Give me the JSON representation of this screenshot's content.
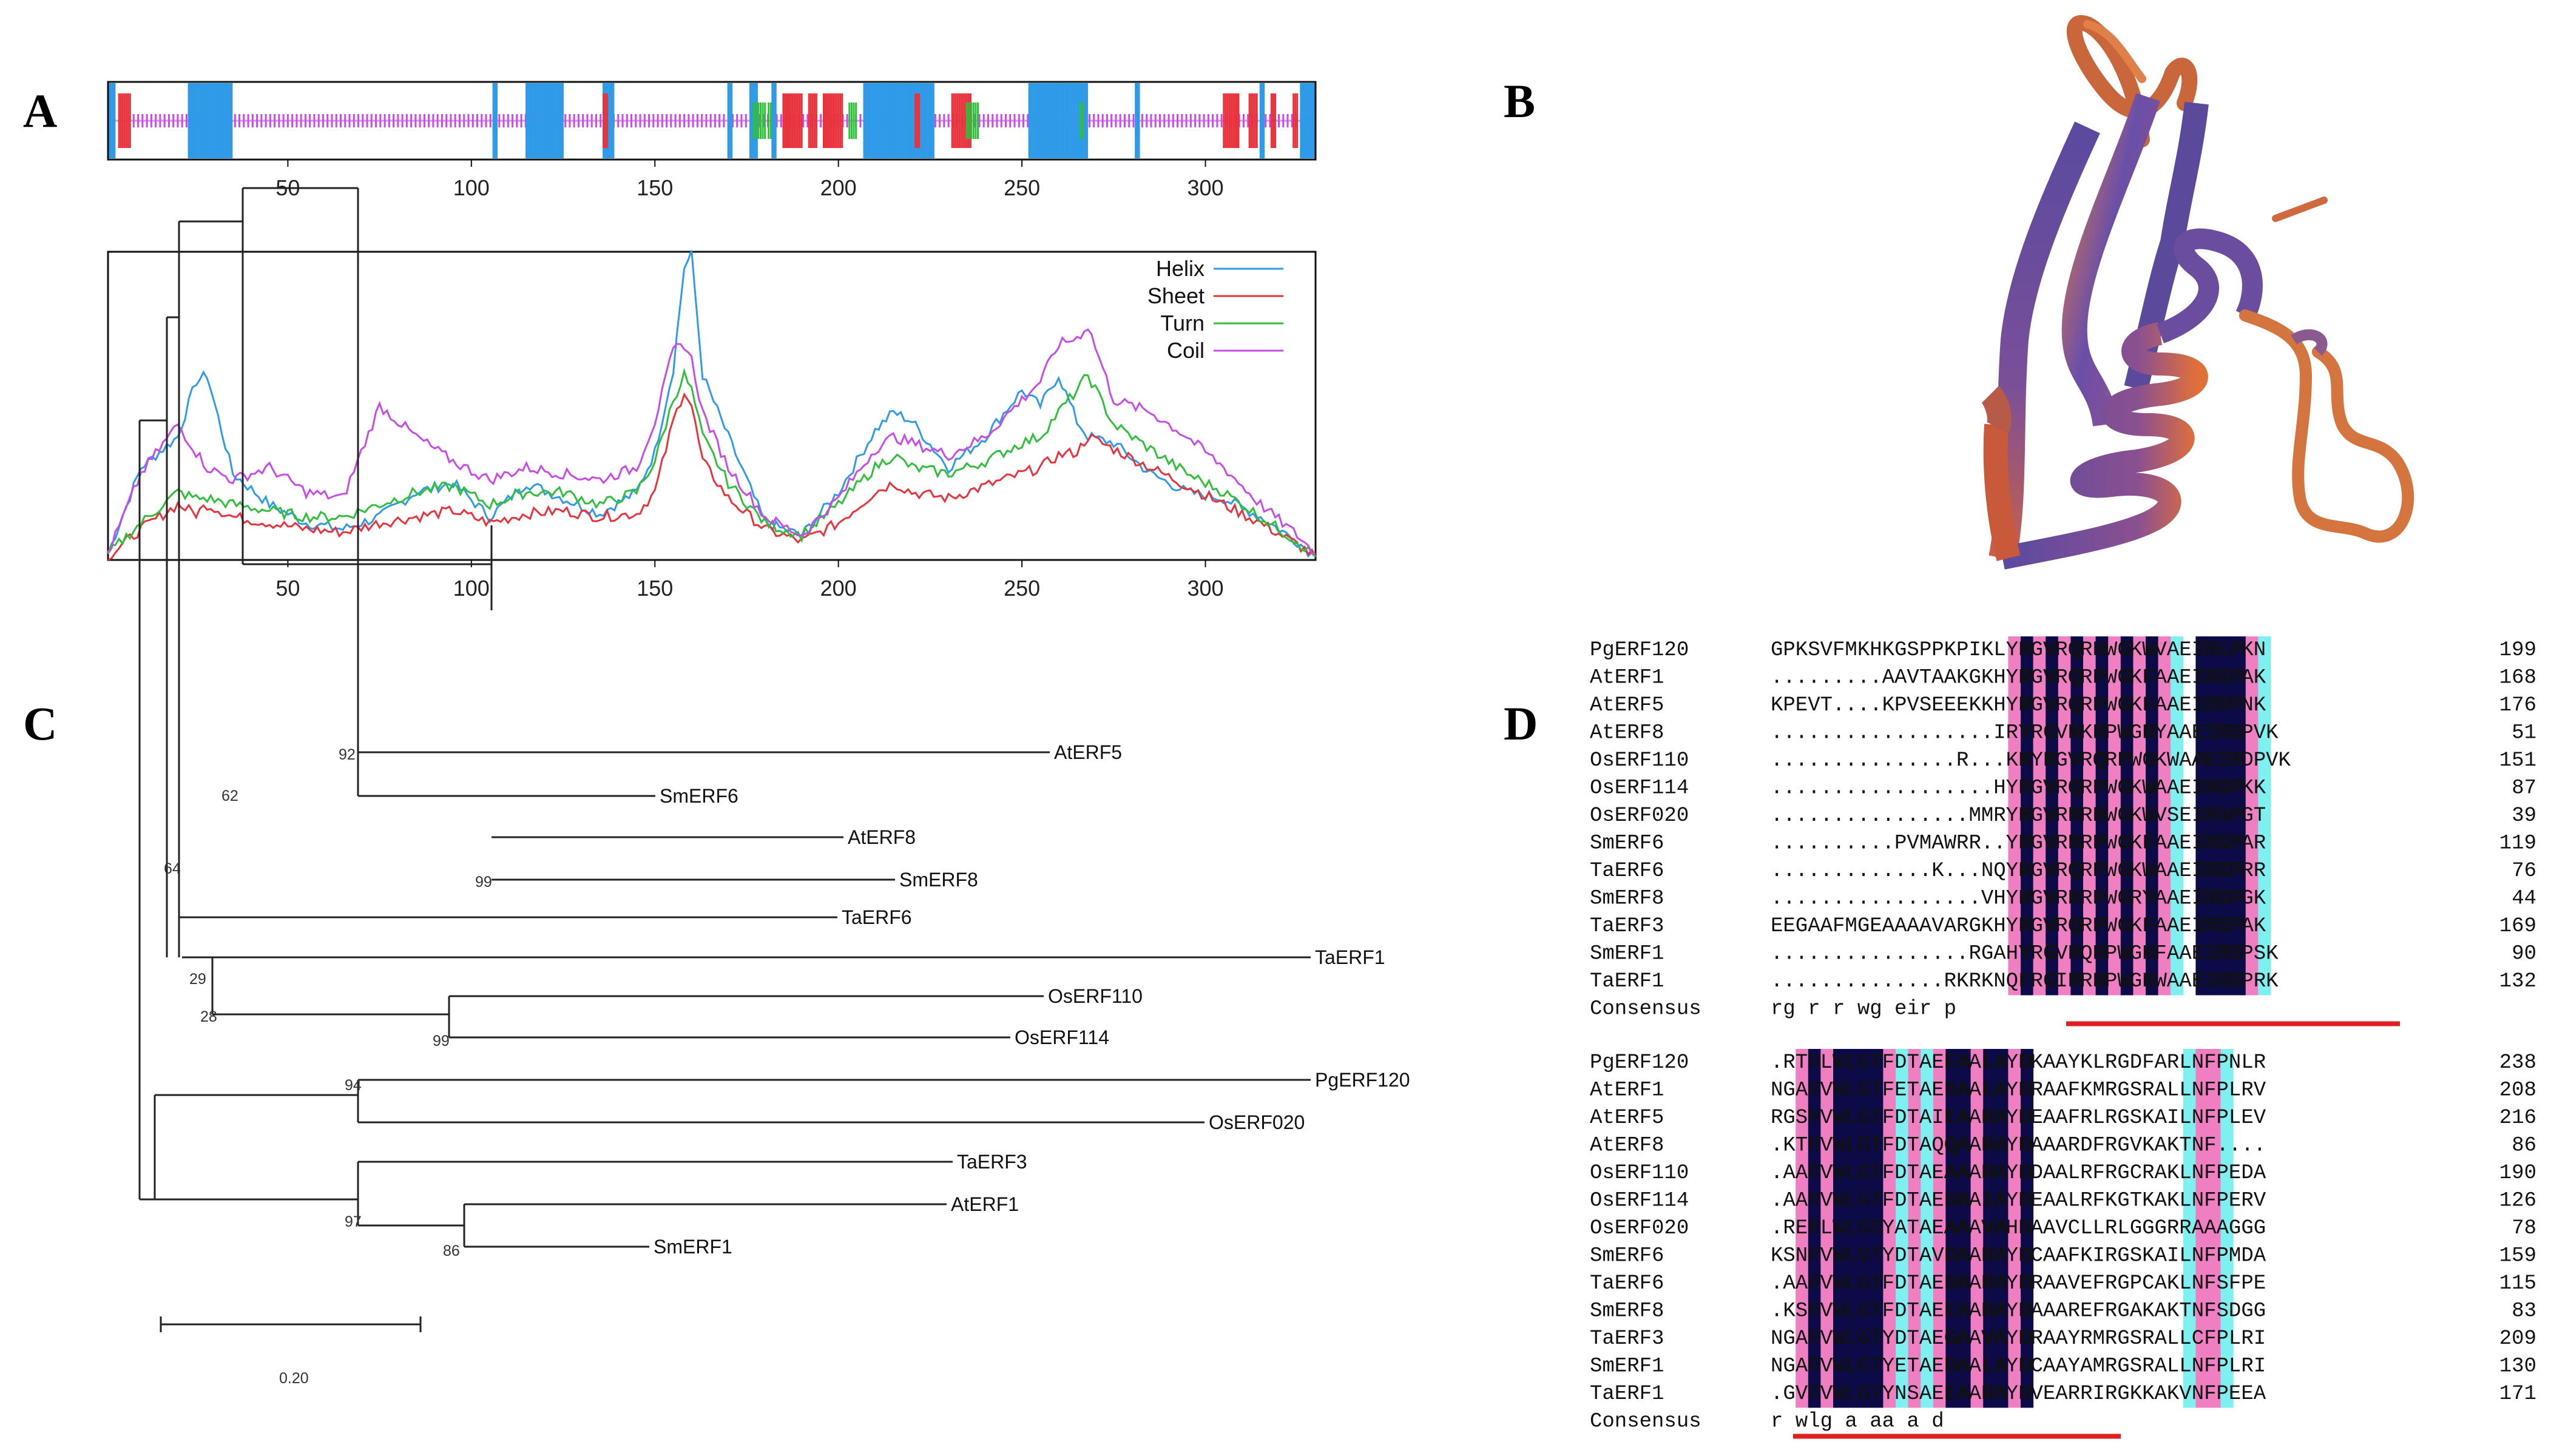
{
  "panels": {
    "a": "A",
    "b": "B",
    "c": "C",
    "d": "D"
  },
  "colors": {
    "helix": "#2f9ae8",
    "sheet": "#e8323c",
    "turn": "#2fbf3a",
    "coil": "#c84be8",
    "dark": "#0d0b47",
    "pink": "#f07fc2",
    "cyan": "#7ff0f0",
    "consensus_bar": "#e02020"
  },
  "panel_a": {
    "axis_ticks": [
      "50",
      "100",
      "150",
      "200",
      "250",
      "300"
    ],
    "legend": [
      "Helix",
      "Sheet",
      "Turn",
      "Coil"
    ]
  },
  "chart_data": {
    "type": "line",
    "title": "",
    "xlabel": "",
    "ylabel": "",
    "xlim": [
      1,
      330
    ],
    "ylim": [
      0,
      1
    ],
    "x": [
      1,
      10,
      20,
      25,
      28,
      35,
      45,
      55,
      65,
      75,
      85,
      95,
      105,
      115,
      125,
      135,
      145,
      150,
      155,
      158,
      160,
      163,
      170,
      180,
      190,
      200,
      210,
      215,
      220,
      230,
      240,
      250,
      255,
      260,
      265,
      268,
      275,
      285,
      295,
      305,
      315,
      325,
      330
    ],
    "series": [
      {
        "name": "Helix",
        "values": [
          0.02,
          0.3,
          0.4,
          0.58,
          0.6,
          0.28,
          0.18,
          0.12,
          0.1,
          0.14,
          0.22,
          0.25,
          0.14,
          0.25,
          0.2,
          0.15,
          0.22,
          0.35,
          0.62,
          0.95,
          0.99,
          0.6,
          0.4,
          0.12,
          0.08,
          0.22,
          0.42,
          0.48,
          0.45,
          0.3,
          0.4,
          0.55,
          0.5,
          0.6,
          0.45,
          0.4,
          0.38,
          0.28,
          0.22,
          0.2,
          0.14,
          0.06,
          0.01
        ]
      },
      {
        "name": "Sheet",
        "values": [
          0.01,
          0.1,
          0.18,
          0.15,
          0.18,
          0.14,
          0.12,
          0.1,
          0.09,
          0.12,
          0.14,
          0.16,
          0.12,
          0.15,
          0.16,
          0.14,
          0.15,
          0.22,
          0.45,
          0.55,
          0.5,
          0.32,
          0.2,
          0.1,
          0.06,
          0.12,
          0.22,
          0.25,
          0.22,
          0.2,
          0.24,
          0.28,
          0.3,
          0.34,
          0.35,
          0.4,
          0.36,
          0.3,
          0.24,
          0.18,
          0.12,
          0.05,
          0.01
        ]
      },
      {
        "name": "Turn",
        "values": [
          0.02,
          0.12,
          0.22,
          0.2,
          0.2,
          0.18,
          0.16,
          0.14,
          0.14,
          0.18,
          0.22,
          0.24,
          0.18,
          0.22,
          0.22,
          0.18,
          0.22,
          0.32,
          0.52,
          0.6,
          0.55,
          0.4,
          0.25,
          0.12,
          0.08,
          0.18,
          0.3,
          0.34,
          0.3,
          0.28,
          0.32,
          0.38,
          0.4,
          0.48,
          0.55,
          0.6,
          0.44,
          0.36,
          0.28,
          0.22,
          0.14,
          0.06,
          0.01
        ]
      },
      {
        "name": "Coil",
        "values": [
          0.02,
          0.28,
          0.44,
          0.35,
          0.3,
          0.26,
          0.3,
          0.22,
          0.2,
          0.5,
          0.4,
          0.32,
          0.26,
          0.3,
          0.28,
          0.26,
          0.3,
          0.45,
          0.68,
          0.7,
          0.65,
          0.48,
          0.3,
          0.14,
          0.08,
          0.2,
          0.36,
          0.4,
          0.38,
          0.34,
          0.4,
          0.52,
          0.58,
          0.7,
          0.72,
          0.76,
          0.52,
          0.48,
          0.4,
          0.3,
          0.18,
          0.08,
          0.02
        ]
      }
    ]
  },
  "panel_c": {
    "taxa": [
      "AtERF5",
      "SmERF6",
      "AtERF8",
      "SmERF8",
      "TaERF6",
      "TaERF1",
      "OsERF110",
      "OsERF114",
      "PgERF120",
      "OsERF020",
      "TaERF3",
      "AtERF1",
      "SmERF1"
    ],
    "bootstrap": [
      "92",
      "62",
      "99",
      "64",
      "29",
      "28",
      "99",
      "94",
      "97",
      "86"
    ],
    "scale_label": "0.20"
  },
  "panel_d": {
    "block1": [
      {
        "name": "PgERF120",
        "seq": "GPKSVFMKHKGSPPKPIKLYRGVRQRHWGKWVAEIRLPKN",
        "num": "199"
      },
      {
        "name": "AtERF1",
        "seq": ".........AAVTAAKGKHYRGVRQRPWGKFAAEIRDPAK",
        "num": "168"
      },
      {
        "name": "AtERF5",
        "seq": "KPEVT....KPVSEEEKKHYRGVRQRPWGKFAAEIRDPNK",
        "num": "176"
      },
      {
        "name": "AtERF8",
        "seq": "..................IRYRGVRKRPWGRYAAEIRDPVK",
        "num": "51"
      },
      {
        "name": "OsERF110",
        "seq": "...............R...KRYRGVRQRPWGKWAAEIRDPVK",
        "num": "151"
      },
      {
        "name": "OsERF114",
        "seq": "..................HYRGVRQRPWGKWAAEIRDPKK",
        "num": "87"
      },
      {
        "name": "OsERF020",
        "seq": "................MMRYRGVRRRRWGKWVSEIRVPGT",
        "num": "39"
      },
      {
        "name": "SmERF6",
        "seq": "..........PVMAWRR..YRGVRRRPWGKFAAEIRDPAR",
        "num": "119"
      },
      {
        "name": "TaERF6",
        "seq": ".............K...NQYRGVRQRPWGKWAAEIRDPRR",
        "num": "76"
      },
      {
        "name": "SmERF8",
        "seq": ".................VHYRGVRKRPWGRYAAEIRDPGK",
        "num": "44"
      },
      {
        "name": "TaERF3",
        "seq": "EEGAAFMGEAAAAVARGKHYRGVRQRPWGKFAAEIRDPAK",
        "num": "169"
      },
      {
        "name": "SmERF1",
        "seq": "................RGAHYRGVRQRPWGKFAAEIRDPSK",
        "num": "90"
      },
      {
        "name": "TaERF1",
        "seq": "..............RKRKNQFRGIRRRPWGKWAAEIRDPRK",
        "num": "132"
      }
    ],
    "consensus1": {
      "name": "Consensus",
      "seq": "                    rg r r wg     eir p  "
    },
    "block2": [
      {
        "name": "PgERF120",
        "seq": ".RTRLWLGTFDTAEEAALAYDKAAYKLRGDFARLNFPNLR",
        "num": "238"
      },
      {
        "name": "AtERF1",
        "seq": "NGARVWLGTFETAEDAALAYDRAAFKMRGSRALLNFPLRV",
        "num": "208"
      },
      {
        "name": "AtERF5",
        "seq": "RGSRVWLGTFDTAIEAARAYDEAAFRLRGSKAILNFPLEV",
        "num": "216"
      },
      {
        "name": "AtERF8",
        "seq": ".KTRVWLGTFDTAQQAARAYDAAARDFRGVKAKTNF....",
        "num": "86"
      },
      {
        "name": "OsERF110",
        "seq": ".AARVWLGTFDTAEAAARAYDDAALRFRGCRAKLNFPEDA",
        "num": "190"
      },
      {
        "name": "OsERF114",
        "seq": ".AARVWLGTFDTAEDAAIAYDEAALRFKGTKAKLNFPERV",
        "num": "126"
      },
      {
        "name": "OsERF020",
        "seq": ".RERLWLGSYATAEAAAVAHDAAVCLLRLGGGRRAAAGGG",
        "num": "78"
      },
      {
        "name": "SmERF6",
        "seq": "KSNRVWLGTYDTAVDAARAYDCAAFKIRGSKAILNFPMDA",
        "num": "159"
      },
      {
        "name": "TaERF6",
        "seq": ".AARVWLGTFDTAEDAARAYDRAAVEFRGPCAKLNFSFPE",
        "num": "115"
      },
      {
        "name": "SmERF8",
        "seq": ".KSRVWLGTFDTAEEAARAYDAAAREFRGAKAKTNFSDGG",
        "num": "83"
      },
      {
        "name": "TaERF3",
        "seq": "NGARVWLGTYDTAEGAAVAYDRAAYRMRGSRALLCFPLRI",
        "num": "209"
      },
      {
        "name": "SmERF1",
        "seq": "NGARVWLGTYETAEDAALAYDCAAYAMRGSRALLNFPLRI",
        "num": "130"
      },
      {
        "name": "TaERF1",
        "seq": ".GVRVWLGTYNSAEEAARAYDVEARRIRGKKAKVNFPEEA",
        "num": "171"
      }
    ],
    "consensus2": {
      "name": "Consensus",
      "seq": "   r wlg    a  aa a d                   "
    }
  }
}
